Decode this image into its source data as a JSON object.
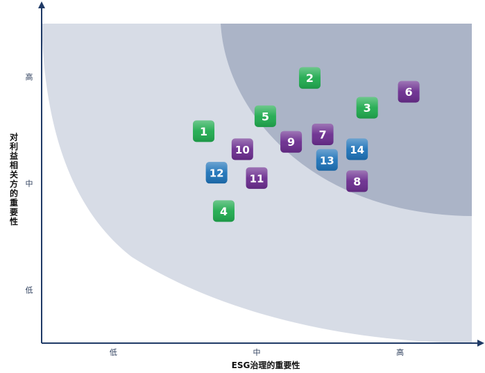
{
  "chart_data": {
    "type": "scatter",
    "title": "",
    "xlabel": "ESG治理的重要性",
    "ylabel": "对利益相关方的重要性",
    "xlim": [
      0,
      3
    ],
    "ylim": [
      0,
      3
    ],
    "x_ticks": [
      {
        "label": "低",
        "value": 0.5
      },
      {
        "label": "中",
        "value": 1.5
      },
      {
        "label": "高",
        "value": 2.5
      }
    ],
    "y_ticks": [
      {
        "label": "低",
        "value": 0.5
      },
      {
        "label": "中",
        "value": 1.5
      },
      {
        "label": "高",
        "value": 2.5
      }
    ],
    "zones": [
      {
        "name": "低",
        "color": "#ffffff"
      },
      {
        "name": "中",
        "color": "#d7dce6"
      },
      {
        "name": "高",
        "color": "#abb4c7"
      }
    ],
    "grid": false,
    "legend": "none",
    "category_colors": {
      "green": "#1faa4e",
      "purple": "#6a2c8e",
      "blue": "#1d72b8"
    },
    "points": [
      {
        "label": "1",
        "x": 1.13,
        "y": 1.99,
        "color": "green"
      },
      {
        "label": "2",
        "x": 1.87,
        "y": 2.49,
        "color": "green"
      },
      {
        "label": "3",
        "x": 2.27,
        "y": 2.21,
        "color": "green"
      },
      {
        "label": "4",
        "x": 1.27,
        "y": 1.24,
        "color": "green"
      },
      {
        "label": "5",
        "x": 1.56,
        "y": 2.13,
        "color": "green"
      },
      {
        "label": "6",
        "x": 2.56,
        "y": 2.36,
        "color": "purple"
      },
      {
        "label": "7",
        "x": 1.96,
        "y": 1.96,
        "color": "purple"
      },
      {
        "label": "8",
        "x": 2.2,
        "y": 1.52,
        "color": "purple"
      },
      {
        "label": "9",
        "x": 1.74,
        "y": 1.89,
        "color": "purple"
      },
      {
        "label": "10",
        "x": 1.4,
        "y": 1.82,
        "color": "purple"
      },
      {
        "label": "11",
        "x": 1.5,
        "y": 1.55,
        "color": "purple"
      },
      {
        "label": "12",
        "x": 1.22,
        "y": 1.6,
        "color": "blue"
      },
      {
        "label": "13",
        "x": 1.99,
        "y": 1.72,
        "color": "blue"
      },
      {
        "label": "14",
        "x": 2.2,
        "y": 1.82,
        "color": "blue"
      }
    ]
  }
}
